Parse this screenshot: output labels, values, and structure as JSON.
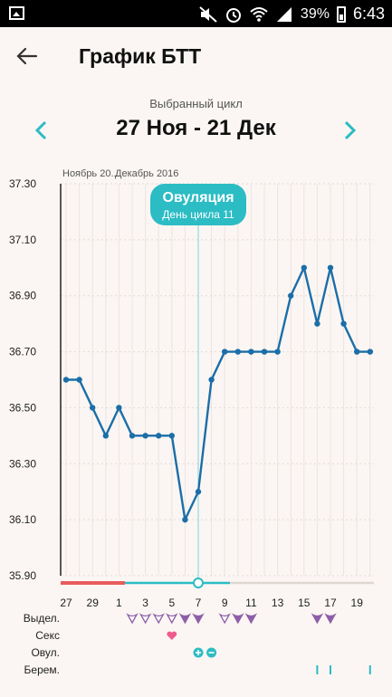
{
  "status_bar": {
    "time": "6:43",
    "battery": "39%"
  },
  "app_bar": {
    "title": "График БТТ"
  },
  "cycle": {
    "caption": "Выбранный цикл",
    "range": "27 Ноя - 21 Дек"
  },
  "colors": {
    "accent": "#2cbcc4",
    "line": "#1b6ea8",
    "period": "#e85c5c",
    "sex": "#f05a8c",
    "discharge": "#8e5fa8"
  },
  "chart_data": {
    "type": "line",
    "months": [
      "Ноябрь 20...",
      "Декабрь 2016"
    ],
    "y_ticks": [
      "37.30",
      "37.10",
      "36.90",
      "36.70",
      "36.50",
      "36.30",
      "36.10",
      "35.90"
    ],
    "ylim": [
      35.9,
      37.3
    ],
    "x_ticks": [
      "27",
      "29",
      "1",
      "3",
      "5",
      "7",
      "9",
      "11",
      "13",
      "15",
      "17",
      "19"
    ],
    "series": [
      {
        "values": [
          36.6,
          36.6,
          36.5,
          36.4,
          36.5,
          36.4,
          36.4,
          36.4,
          36.4,
          36.1,
          36.2,
          36.6,
          36.7,
          36.7,
          36.7,
          36.7,
          36.7,
          36.9,
          37.0,
          36.8,
          37.0,
          36.8,
          36.7,
          36.7
        ]
      }
    ],
    "ovulation": {
      "title": "Овуляция",
      "subtitle": "День цикла 11",
      "day_index": 10
    }
  },
  "tracker_rows": {
    "labels": [
      "Выдел.",
      "Секс",
      "Овул.",
      "Берем."
    ],
    "discharge_days": [
      5,
      6,
      7,
      8,
      9,
      10,
      12,
      13,
      14,
      19,
      20
    ],
    "discharge_dark_days": [
      9,
      10,
      13,
      14,
      19,
      20
    ],
    "sex_days": [
      8
    ],
    "ovulation_test_days": [
      10,
      11
    ],
    "pregnancy_test_days": [
      19,
      20,
      23
    ]
  },
  "icons": {
    "back": "arrow-left-icon",
    "prev": "chevron-left-icon",
    "next": "chevron-right-icon"
  }
}
